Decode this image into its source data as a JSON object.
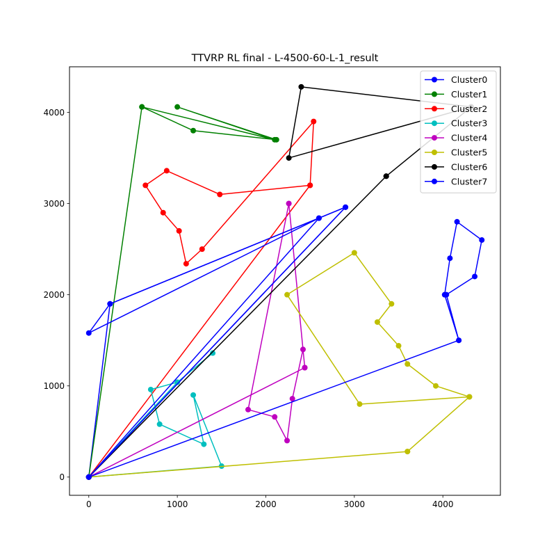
{
  "chart_data": {
    "type": "line",
    "title": "TTVRP RL final - L-4500-60-L-1_result",
    "xlabel": "",
    "ylabel": "",
    "xlim": [
      -218,
      4650
    ],
    "ylim": [
      -200,
      4500
    ],
    "xticks": [
      0,
      1000,
      2000,
      3000,
      4000
    ],
    "yticks": [
      0,
      1000,
      2000,
      3000,
      4000
    ],
    "grid": false,
    "legend_position": "top-right",
    "series": [
      {
        "name": "Cluster0",
        "color": "#0000ff",
        "points": [
          [
            0,
            0
          ],
          [
            2900,
            2960
          ],
          [
            240,
            1900
          ],
          [
            0,
            0
          ]
        ]
      },
      {
        "name": "Cluster1",
        "color": "#008000",
        "points": [
          [
            0,
            0
          ],
          [
            600,
            4060
          ],
          [
            1180,
            3800
          ],
          [
            2120,
            3700
          ],
          [
            1000,
            4060
          ],
          [
            2100,
            3700
          ],
          [
            600,
            4060
          ],
          [
            0,
            0
          ]
        ]
      },
      {
        "name": "Cluster2",
        "color": "#ff0000",
        "points": [
          [
            0,
            0
          ],
          [
            2500,
            3200
          ],
          [
            1480,
            3100
          ],
          [
            880,
            3360
          ],
          [
            640,
            3200
          ],
          [
            840,
            2900
          ],
          [
            1020,
            2700
          ],
          [
            1100,
            2340
          ],
          [
            1280,
            2500
          ],
          [
            2540,
            3900
          ],
          [
            2500,
            3200
          ],
          [
            0,
            0
          ]
        ]
      },
      {
        "name": "Cluster3",
        "color": "#00bfbf",
        "points": [
          [
            0,
            0
          ],
          [
            1500,
            120
          ],
          [
            1180,
            900
          ],
          [
            1300,
            360
          ],
          [
            800,
            580
          ],
          [
            700,
            960
          ],
          [
            1000,
            1040
          ],
          [
            1400,
            1360
          ],
          [
            1000,
            1040
          ],
          [
            0,
            0
          ]
        ]
      },
      {
        "name": "Cluster4",
        "color": "#bf00bf",
        "points": [
          [
            0,
            0
          ],
          [
            2440,
            1200
          ],
          [
            2260,
            3000
          ],
          [
            2420,
            1400
          ],
          [
            2300,
            860
          ],
          [
            2240,
            400
          ],
          [
            2100,
            660
          ],
          [
            1800,
            740
          ],
          [
            2260,
            3000
          ],
          [
            2440,
            1200
          ],
          [
            0,
            0
          ]
        ]
      },
      {
        "name": "Cluster5",
        "color": "#bfbf00",
        "points": [
          [
            0,
            0
          ],
          [
            3600,
            280
          ],
          [
            4300,
            880
          ],
          [
            3060,
            800
          ],
          [
            2240,
            2000
          ],
          [
            3000,
            2460
          ],
          [
            3420,
            1900
          ],
          [
            3260,
            1700
          ],
          [
            3500,
            1440
          ],
          [
            3600,
            1240
          ],
          [
            3920,
            1000
          ],
          [
            4300,
            880
          ],
          [
            3600,
            280
          ],
          [
            0,
            0
          ]
        ]
      },
      {
        "name": "Cluster6",
        "color": "#000000",
        "points": [
          [
            0,
            0
          ],
          [
            3360,
            3300
          ],
          [
            4320,
            4060
          ],
          [
            2400,
            4280
          ],
          [
            2260,
            3500
          ],
          [
            4320,
            4060
          ],
          [
            3360,
            3300
          ],
          [
            0,
            0
          ]
        ]
      },
      {
        "name": "Cluster7",
        "color": "#0000ff",
        "points": [
          [
            0,
            0
          ],
          [
            2900,
            2960
          ],
          [
            2600,
            2840
          ],
          [
            0,
            1580
          ],
          [
            240,
            1900
          ],
          [
            2600,
            2840
          ],
          [
            0,
            0
          ],
          [
            4180,
            1500
          ],
          [
            4020,
            2000
          ],
          [
            4080,
            2400
          ],
          [
            4160,
            2800
          ],
          [
            4440,
            2600
          ],
          [
            4360,
            2200
          ],
          [
            4040,
            2000
          ],
          [
            4180,
            1500
          ],
          [
            0,
            0
          ]
        ]
      }
    ]
  }
}
